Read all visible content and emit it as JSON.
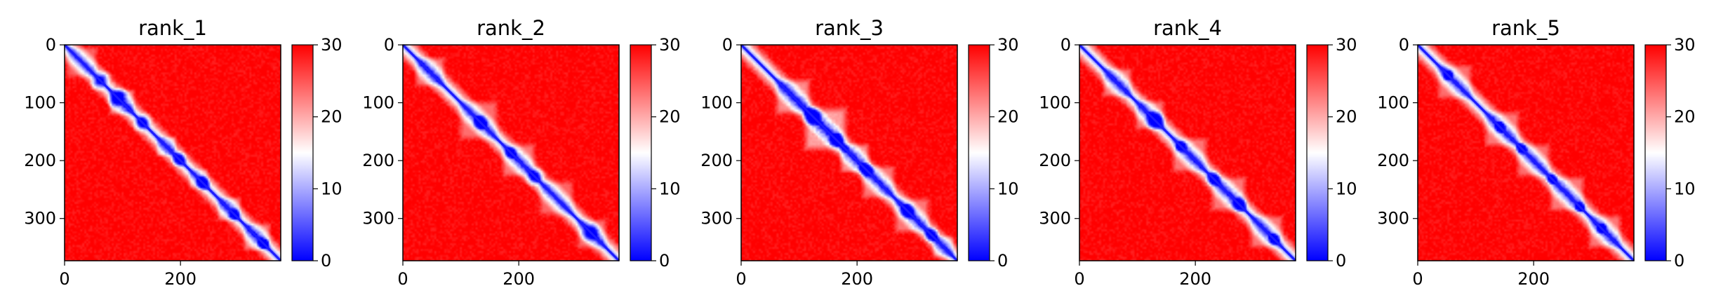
{
  "chart_data": [
    {
      "type": "heatmap",
      "title": "rank_1",
      "xlabel": "",
      "ylabel": "",
      "x_ticks": [
        0,
        200
      ],
      "y_ticks": [
        0,
        100,
        200,
        300
      ],
      "colorbar": {
        "min": 0,
        "max": 30,
        "ticks": [
          0,
          10,
          20,
          30
        ],
        "colors": [
          "#0000ff",
          "#ffffff",
          "#ff0000"
        ]
      },
      "matrix_size": 373,
      "domains": [
        [
          0,
          0.16,
          0.24
        ],
        [
          0.2,
          0.33,
          0.35
        ],
        [
          0.42,
          0.52,
          0.3
        ],
        [
          0.57,
          0.67,
          0.22
        ],
        [
          0.7,
          0.82,
          0.3
        ],
        [
          0.82,
          0.96,
          0.32
        ]
      ],
      "spots": [
        [
          0.18,
          0.15,
          0.04
        ],
        [
          0.26,
          0.23,
          0.04
        ],
        [
          0.37,
          0.35,
          0.04
        ],
        [
          0.53,
          0.53,
          0.04
        ],
        [
          0.64,
          0.64,
          0.04
        ],
        [
          0.79,
          0.78,
          0.03
        ],
        [
          0.92,
          0.92,
          0.03
        ]
      ]
    },
    {
      "type": "heatmap",
      "title": "rank_2",
      "xlabel": "",
      "ylabel": "",
      "x_ticks": [
        0,
        200
      ],
      "y_ticks": [
        0,
        100,
        200,
        300
      ],
      "colorbar": {
        "min": 0,
        "max": 30,
        "ticks": [
          0,
          10,
          20,
          30
        ],
        "colors": [
          "#0000ff",
          "#ffffff",
          "#ff0000"
        ]
      },
      "matrix_size": 373,
      "domains": [
        [
          0.05,
          0.2,
          0.3
        ],
        [
          0.25,
          0.45,
          0.28
        ],
        [
          0.45,
          0.62,
          0.3
        ],
        [
          0.62,
          0.8,
          0.25
        ],
        [
          0.8,
          0.95,
          0.28
        ]
      ],
      "spots": [
        [
          0.36,
          0.36,
          0.04
        ],
        [
          0.5,
          0.5,
          0.03
        ],
        [
          0.6,
          0.62,
          0.04
        ],
        [
          0.86,
          0.88,
          0.04
        ]
      ]
    },
    {
      "type": "heatmap",
      "title": "rank_3",
      "xlabel": "",
      "ylabel": "",
      "x_ticks": [
        0,
        200
      ],
      "y_ticks": [
        0,
        100,
        200,
        300
      ],
      "colorbar": {
        "min": 0,
        "max": 30,
        "ticks": [
          0,
          10,
          20,
          30
        ],
        "colors": [
          "#0000ff",
          "#ffffff",
          "#ff0000"
        ]
      },
      "matrix_size": 373,
      "domains": [
        [
          0.15,
          0.33,
          0.35
        ],
        [
          0.28,
          0.5,
          0.4
        ],
        [
          0.45,
          0.6,
          0.35
        ],
        [
          0.55,
          0.72,
          0.3
        ],
        [
          0.7,
          0.88,
          0.3
        ],
        [
          0.88,
          0.99,
          0.3
        ]
      ],
      "spots": [
        [
          0.33,
          0.33,
          0.05
        ],
        [
          0.44,
          0.44,
          0.04
        ],
        [
          0.58,
          0.58,
          0.04
        ],
        [
          0.77,
          0.77,
          0.04
        ],
        [
          0.88,
          0.88,
          0.04
        ]
      ]
    },
    {
      "type": "heatmap",
      "title": "rank_4",
      "xlabel": "",
      "ylabel": "",
      "x_ticks": [
        0,
        200
      ],
      "y_ticks": [
        0,
        100,
        200,
        300
      ],
      "colorbar": {
        "min": 0,
        "max": 30,
        "ticks": [
          0,
          10,
          20,
          30
        ],
        "colors": [
          "#0000ff",
          "#ffffff",
          "#ff0000"
        ]
      },
      "matrix_size": 373,
      "domains": [
        [
          0.1,
          0.25,
          0.3
        ],
        [
          0.25,
          0.4,
          0.3
        ],
        [
          0.42,
          0.6,
          0.3
        ],
        [
          0.6,
          0.78,
          0.3
        ],
        [
          0.78,
          0.95,
          0.3
        ]
      ],
      "spots": [
        [
          0.35,
          0.35,
          0.05
        ],
        [
          0.47,
          0.47,
          0.03
        ],
        [
          0.62,
          0.62,
          0.04
        ],
        [
          0.74,
          0.74,
          0.04
        ],
        [
          0.9,
          0.9,
          0.03
        ]
      ]
    },
    {
      "type": "heatmap",
      "title": "rank_5",
      "xlabel": "",
      "ylabel": "",
      "x_ticks": [
        0,
        200
      ],
      "y_ticks": [
        0,
        100,
        200,
        300
      ],
      "colorbar": {
        "min": 0,
        "max": 30,
        "ticks": [
          0,
          10,
          20,
          30
        ],
        "colors": [
          "#0000ff",
          "#ffffff",
          "#ff0000"
        ]
      },
      "matrix_size": 373,
      "domains": [
        [
          0.08,
          0.26,
          0.28
        ],
        [
          0.3,
          0.48,
          0.3
        ],
        [
          0.45,
          0.62,
          0.28
        ],
        [
          0.6,
          0.78,
          0.3
        ],
        [
          0.78,
          0.95,
          0.3
        ]
      ],
      "spots": [
        [
          0.14,
          0.14,
          0.03
        ],
        [
          0.38,
          0.38,
          0.03
        ],
        [
          0.48,
          0.48,
          0.03
        ],
        [
          0.62,
          0.62,
          0.03
        ],
        [
          0.75,
          0.75,
          0.03
        ],
        [
          0.85,
          0.85,
          0.03
        ]
      ]
    }
  ]
}
